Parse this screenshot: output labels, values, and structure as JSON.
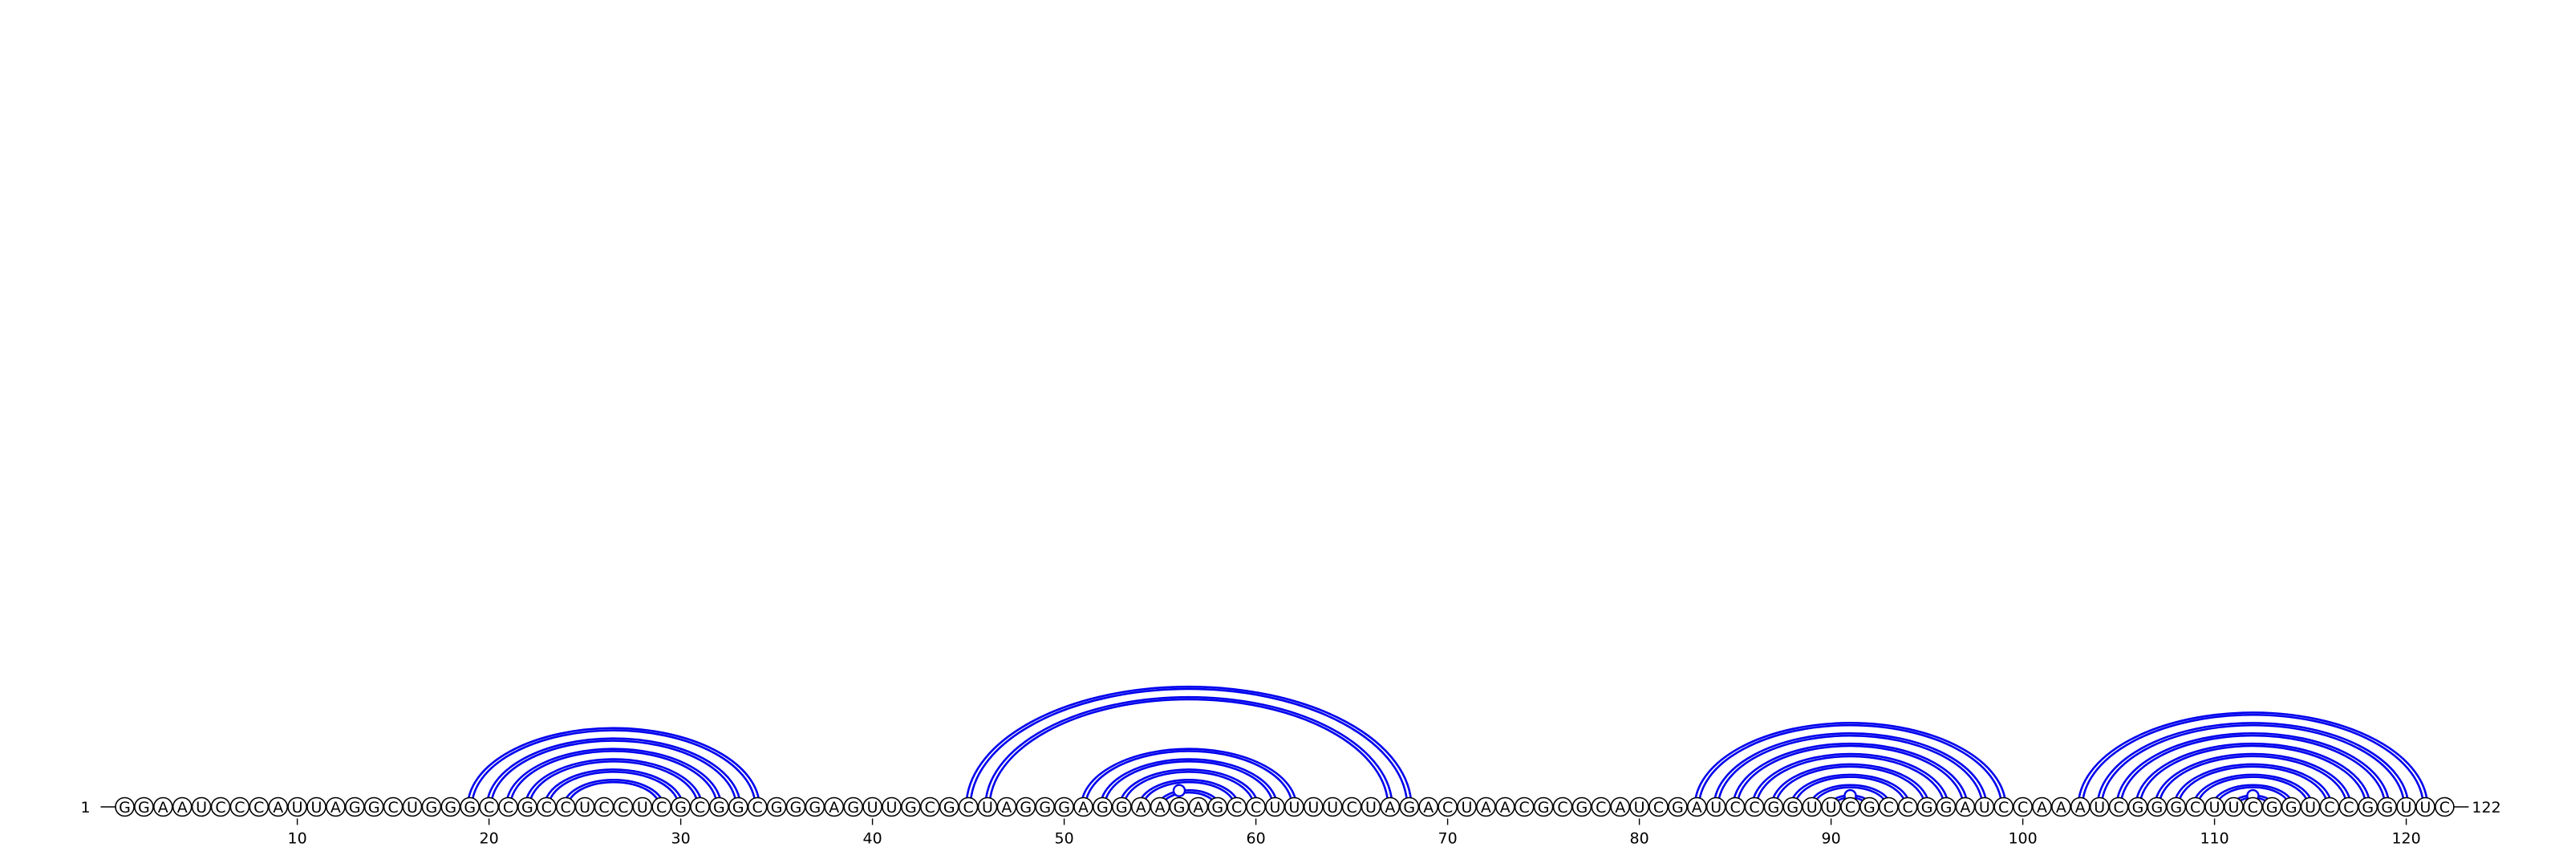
{
  "sequence": "GGAAUCCCAUUAGGCUGGGCCGCCUCCUCGCGGCGGGAGUUGCGCUAGGGAGGAAGAGCCUUUUCUAGACUAACGCGCAUCGAUCCGGUUCGCCGGAUCCAAAUCGGGCUUCGGUCCGGUUC",
  "start_label": "1",
  "end_label": "122",
  "ticks": [
    10,
    20,
    30,
    40,
    50,
    60,
    70,
    80,
    90,
    100,
    110,
    120
  ],
  "colors": {
    "bond": "#0000ee",
    "nucleotide_outline": "#000000",
    "nucleotide_fill": "#ffffff"
  },
  "pairs": [
    [
      19,
      34
    ],
    [
      20,
      33
    ],
    [
      21,
      32
    ],
    [
      22,
      31
    ],
    [
      23,
      30
    ],
    [
      24,
      29
    ],
    [
      45,
      68
    ],
    [
      46,
      67
    ],
    [
      51,
      62
    ],
    [
      52,
      61
    ],
    [
      53,
      60
    ],
    [
      54,
      59
    ],
    [
      55,
      58
    ],
    [
      83,
      99
    ],
    [
      84,
      98
    ],
    [
      85,
      97
    ],
    [
      86,
      96
    ],
    [
      87,
      95
    ],
    [
      88,
      94
    ],
    [
      89,
      93
    ],
    [
      90,
      92
    ],
    [
      103,
      121
    ],
    [
      104,
      120
    ],
    [
      105,
      119
    ],
    [
      106,
      118
    ],
    [
      107,
      117
    ],
    [
      108,
      116
    ],
    [
      109,
      115
    ],
    [
      110,
      114
    ],
    [
      111,
      113
    ]
  ],
  "mismatches": [
    56,
    91,
    112
  ]
}
